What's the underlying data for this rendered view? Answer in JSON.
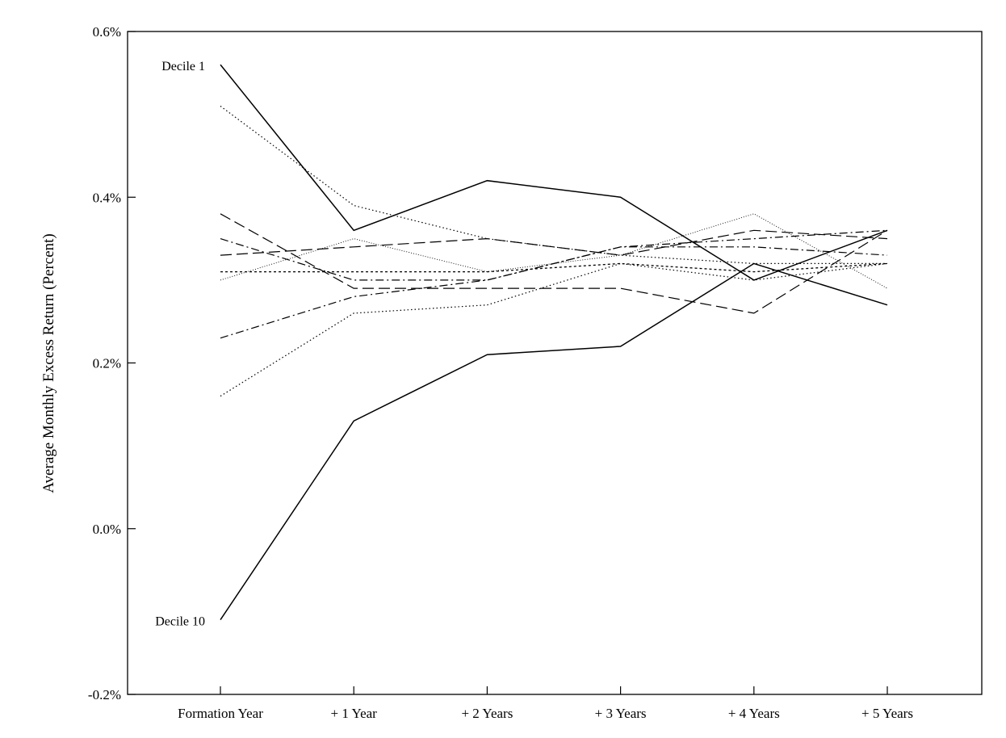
{
  "chart_data": {
    "type": "line",
    "title": "",
    "xlabel": "",
    "ylabel": "Average Monthly Excess Return (Percent)",
    "categories": [
      "Formation Year",
      "+ 1 Year",
      "+ 2 Years",
      "+ 3 Years",
      "+ 4 Years",
      "+ 5 Years"
    ],
    "yticks": [
      "-0.2%",
      "0.0%",
      "0.2%",
      "0.4%",
      "0.6%"
    ],
    "ytick_values": [
      -0.2,
      0.0,
      0.2,
      0.4,
      0.6
    ],
    "ylim": [
      -0.2,
      0.6
    ],
    "grid": false,
    "annotations": [
      {
        "text": "Decile 1",
        "series": 0,
        "point": 0
      },
      {
        "text": "Decile 10",
        "series": 9,
        "point": 0
      }
    ],
    "series": [
      {
        "values": [
          0.56,
          0.36,
          0.42,
          0.4,
          0.3,
          0.36
        ],
        "style": "solid"
      },
      {
        "values": [
          0.51,
          0.39,
          0.35,
          0.33,
          0.32,
          0.32
        ],
        "style": "dotted"
      },
      {
        "values": [
          0.38,
          0.29,
          0.29,
          0.29,
          0.26,
          0.36
        ],
        "style": "longdash"
      },
      {
        "values": [
          0.35,
          0.3,
          0.3,
          0.34,
          0.35,
          0.36
        ],
        "style": "dashdot"
      },
      {
        "values": [
          0.33,
          0.34,
          0.35,
          0.33,
          0.36,
          0.35
        ],
        "style": "longdash"
      },
      {
        "values": [
          0.31,
          0.31,
          0.31,
          0.32,
          0.31,
          0.32
        ],
        "style": "shortdash"
      },
      {
        "values": [
          0.3,
          0.35,
          0.31,
          0.33,
          0.38,
          0.29
        ],
        "style": "finedot"
      },
      {
        "values": [
          0.23,
          0.28,
          0.3,
          0.34,
          0.34,
          0.33
        ],
        "style": "dashdot"
      },
      {
        "values": [
          0.16,
          0.26,
          0.27,
          0.32,
          0.3,
          0.32
        ],
        "style": "dotted"
      },
      {
        "values": [
          -0.11,
          0.13,
          0.21,
          0.22,
          0.32,
          0.27
        ],
        "style": "solid"
      }
    ]
  }
}
